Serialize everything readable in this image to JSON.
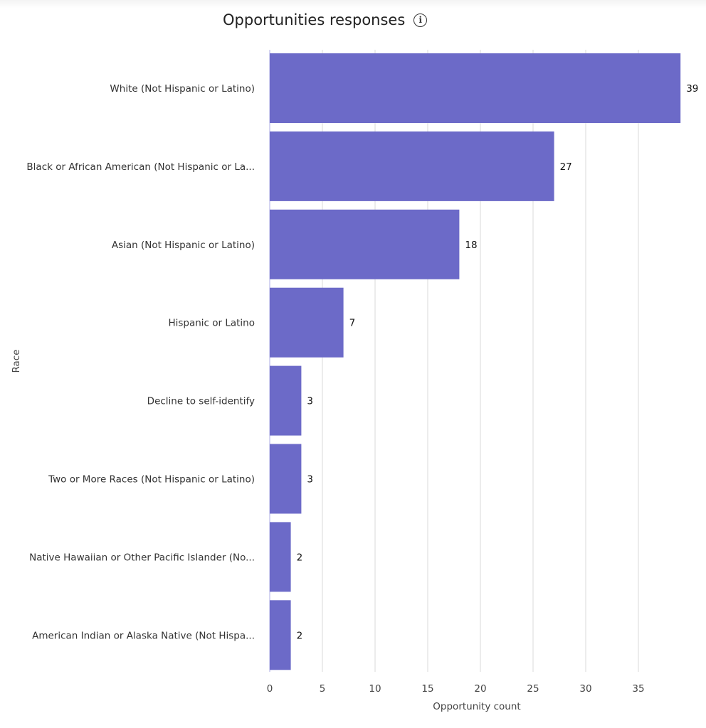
{
  "chart_data": {
    "type": "bar",
    "orientation": "horizontal",
    "title": "Opportunities responses",
    "title_icon": "info-icon",
    "xlabel": "Opportunity count",
    "ylabel": "Race",
    "xlim": [
      0,
      39
    ],
    "xticks": [
      0,
      5,
      10,
      15,
      20,
      25,
      30,
      35
    ],
    "grid": true,
    "bar_color": "#6c6ac8",
    "categories": [
      "White (Not Hispanic or Latino)",
      "Black or African American (Not Hispanic or La...",
      "Asian (Not Hispanic or Latino)",
      "Hispanic or Latino",
      "Decline to self-identify",
      "Two or More Races (Not Hispanic or Latino)",
      "Native Hawaiian or Other Pacific Islander (No...",
      "American Indian or Alaska Native (Not Hispa..."
    ],
    "values": [
      39,
      27,
      18,
      7,
      3,
      3,
      2,
      2
    ]
  }
}
